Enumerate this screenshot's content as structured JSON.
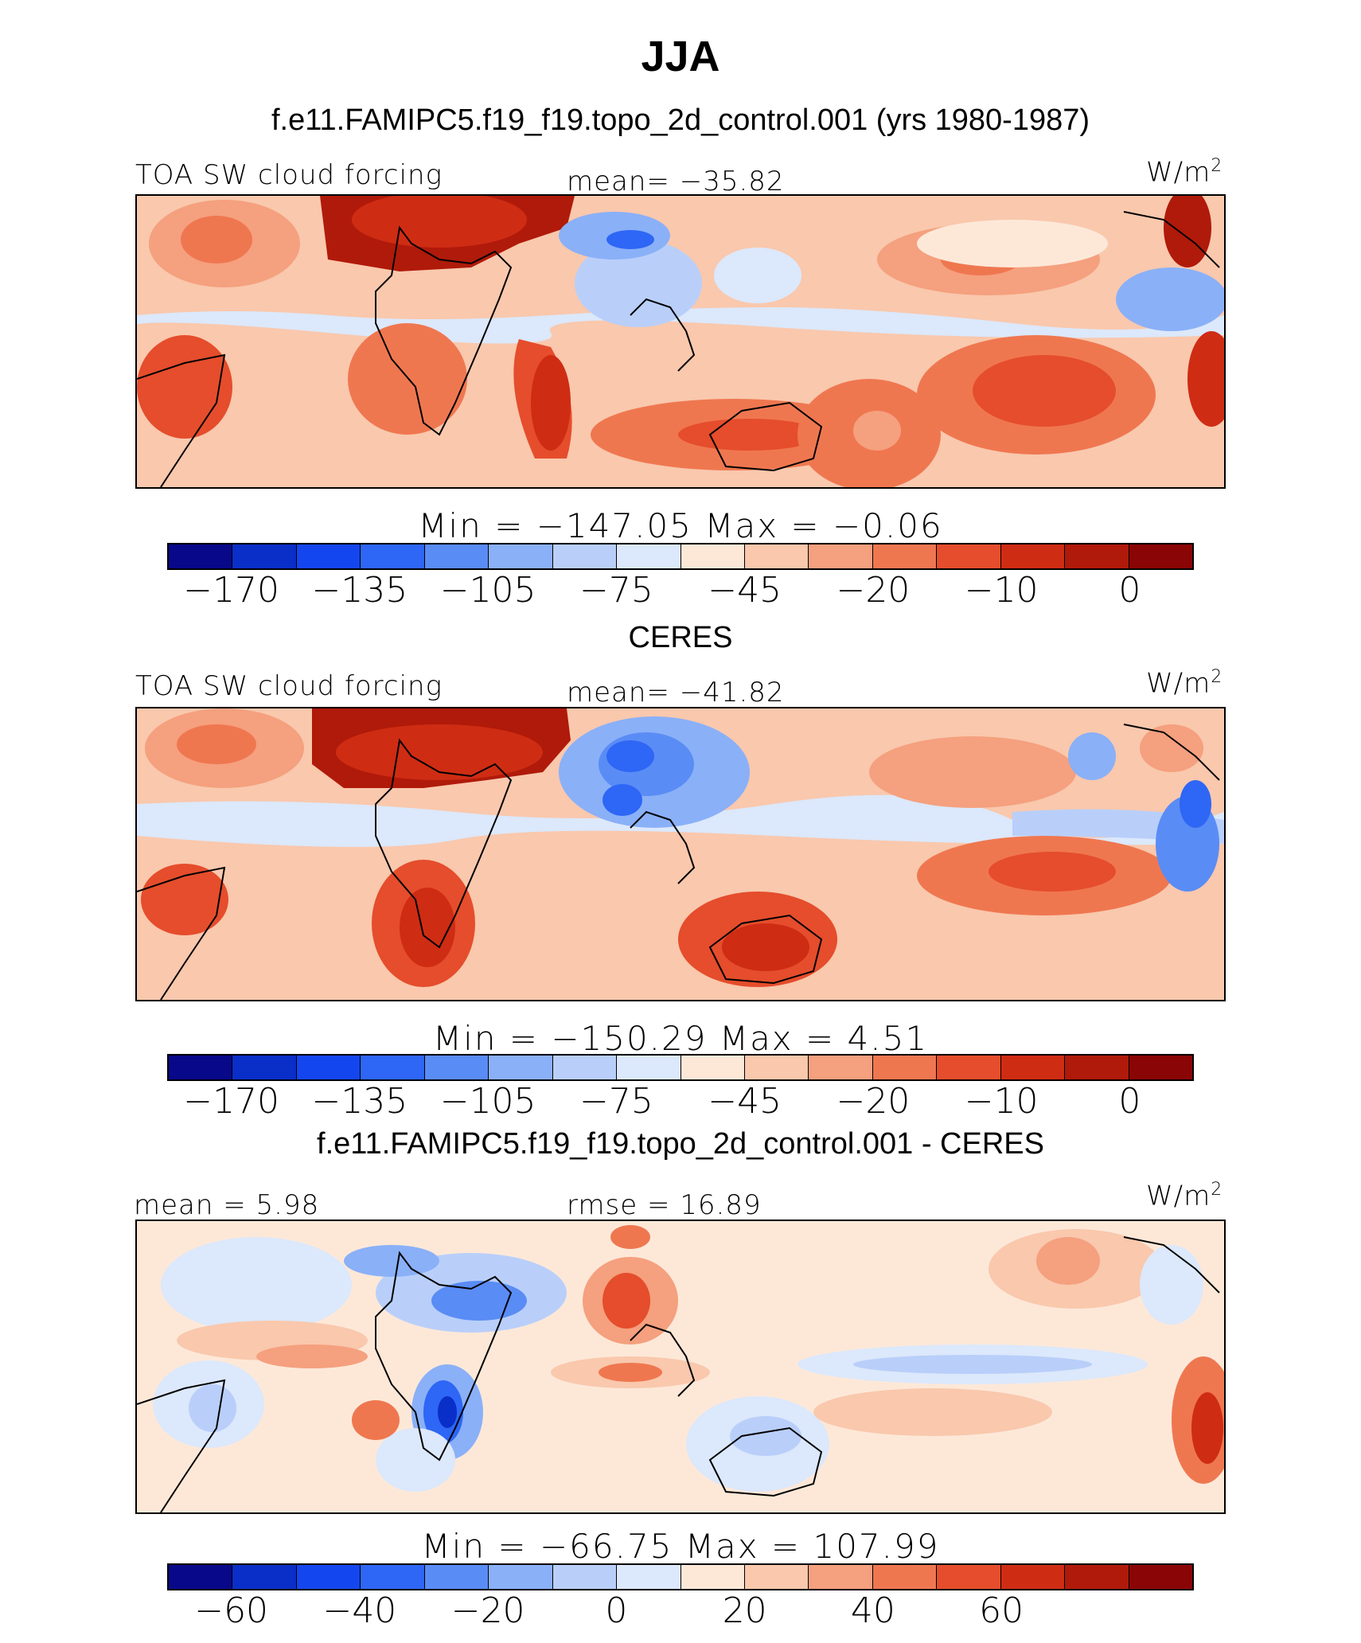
{
  "title": "JJA",
  "palette": [
    "#08088a",
    "#0a2fc8",
    "#1446f0",
    "#2e66f5",
    "#5a8cf5",
    "#8ab0f8",
    "#b9cffa",
    "#dce8fb",
    "#fde8d8",
    "#f9c8ad",
    "#f5a07e",
    "#ef7750",
    "#e54d2c",
    "#cf2c14",
    "#b01a0a",
    "#8a0505"
  ],
  "panels": [
    {
      "title": "f.e11.FAMIPC5.f19_f19.topo_2d_control.001 (yrs 1980-1987)",
      "left_label": "TOA SW cloud forcing",
      "center_label": "mean= −35.82",
      "units": "W/m",
      "units_sup": "2",
      "minmax": "Min  =  −147.05  Max  =    −0.06",
      "ticks": [
        "−170",
        "−135",
        "−105",
        "−75",
        "−45",
        "−20",
        "−10",
        "0"
      ]
    },
    {
      "title": "CERES",
      "left_label": "TOA SW cloud forcing",
      "center_label": "mean= −41.82",
      "units": "W/m",
      "units_sup": "2",
      "minmax": "Min  =  −150.29  Max  =     4.51",
      "ticks": [
        "−170",
        "−135",
        "−105",
        "−75",
        "−45",
        "−20",
        "−10",
        "0"
      ]
    },
    {
      "title": "f.e11.FAMIPC5.f19_f19.topo_2d_control.001 - CERES",
      "left_label": "mean  =    5.98",
      "center_label": "rmse  =   16.89",
      "units": "W/m",
      "units_sup": "2",
      "minmax": "Min  =  −66.75  Max  =  107.99",
      "ticks": [
        "−60",
        "−40",
        "−20",
        "0",
        "20",
        "40",
        "60"
      ]
    }
  ]
}
